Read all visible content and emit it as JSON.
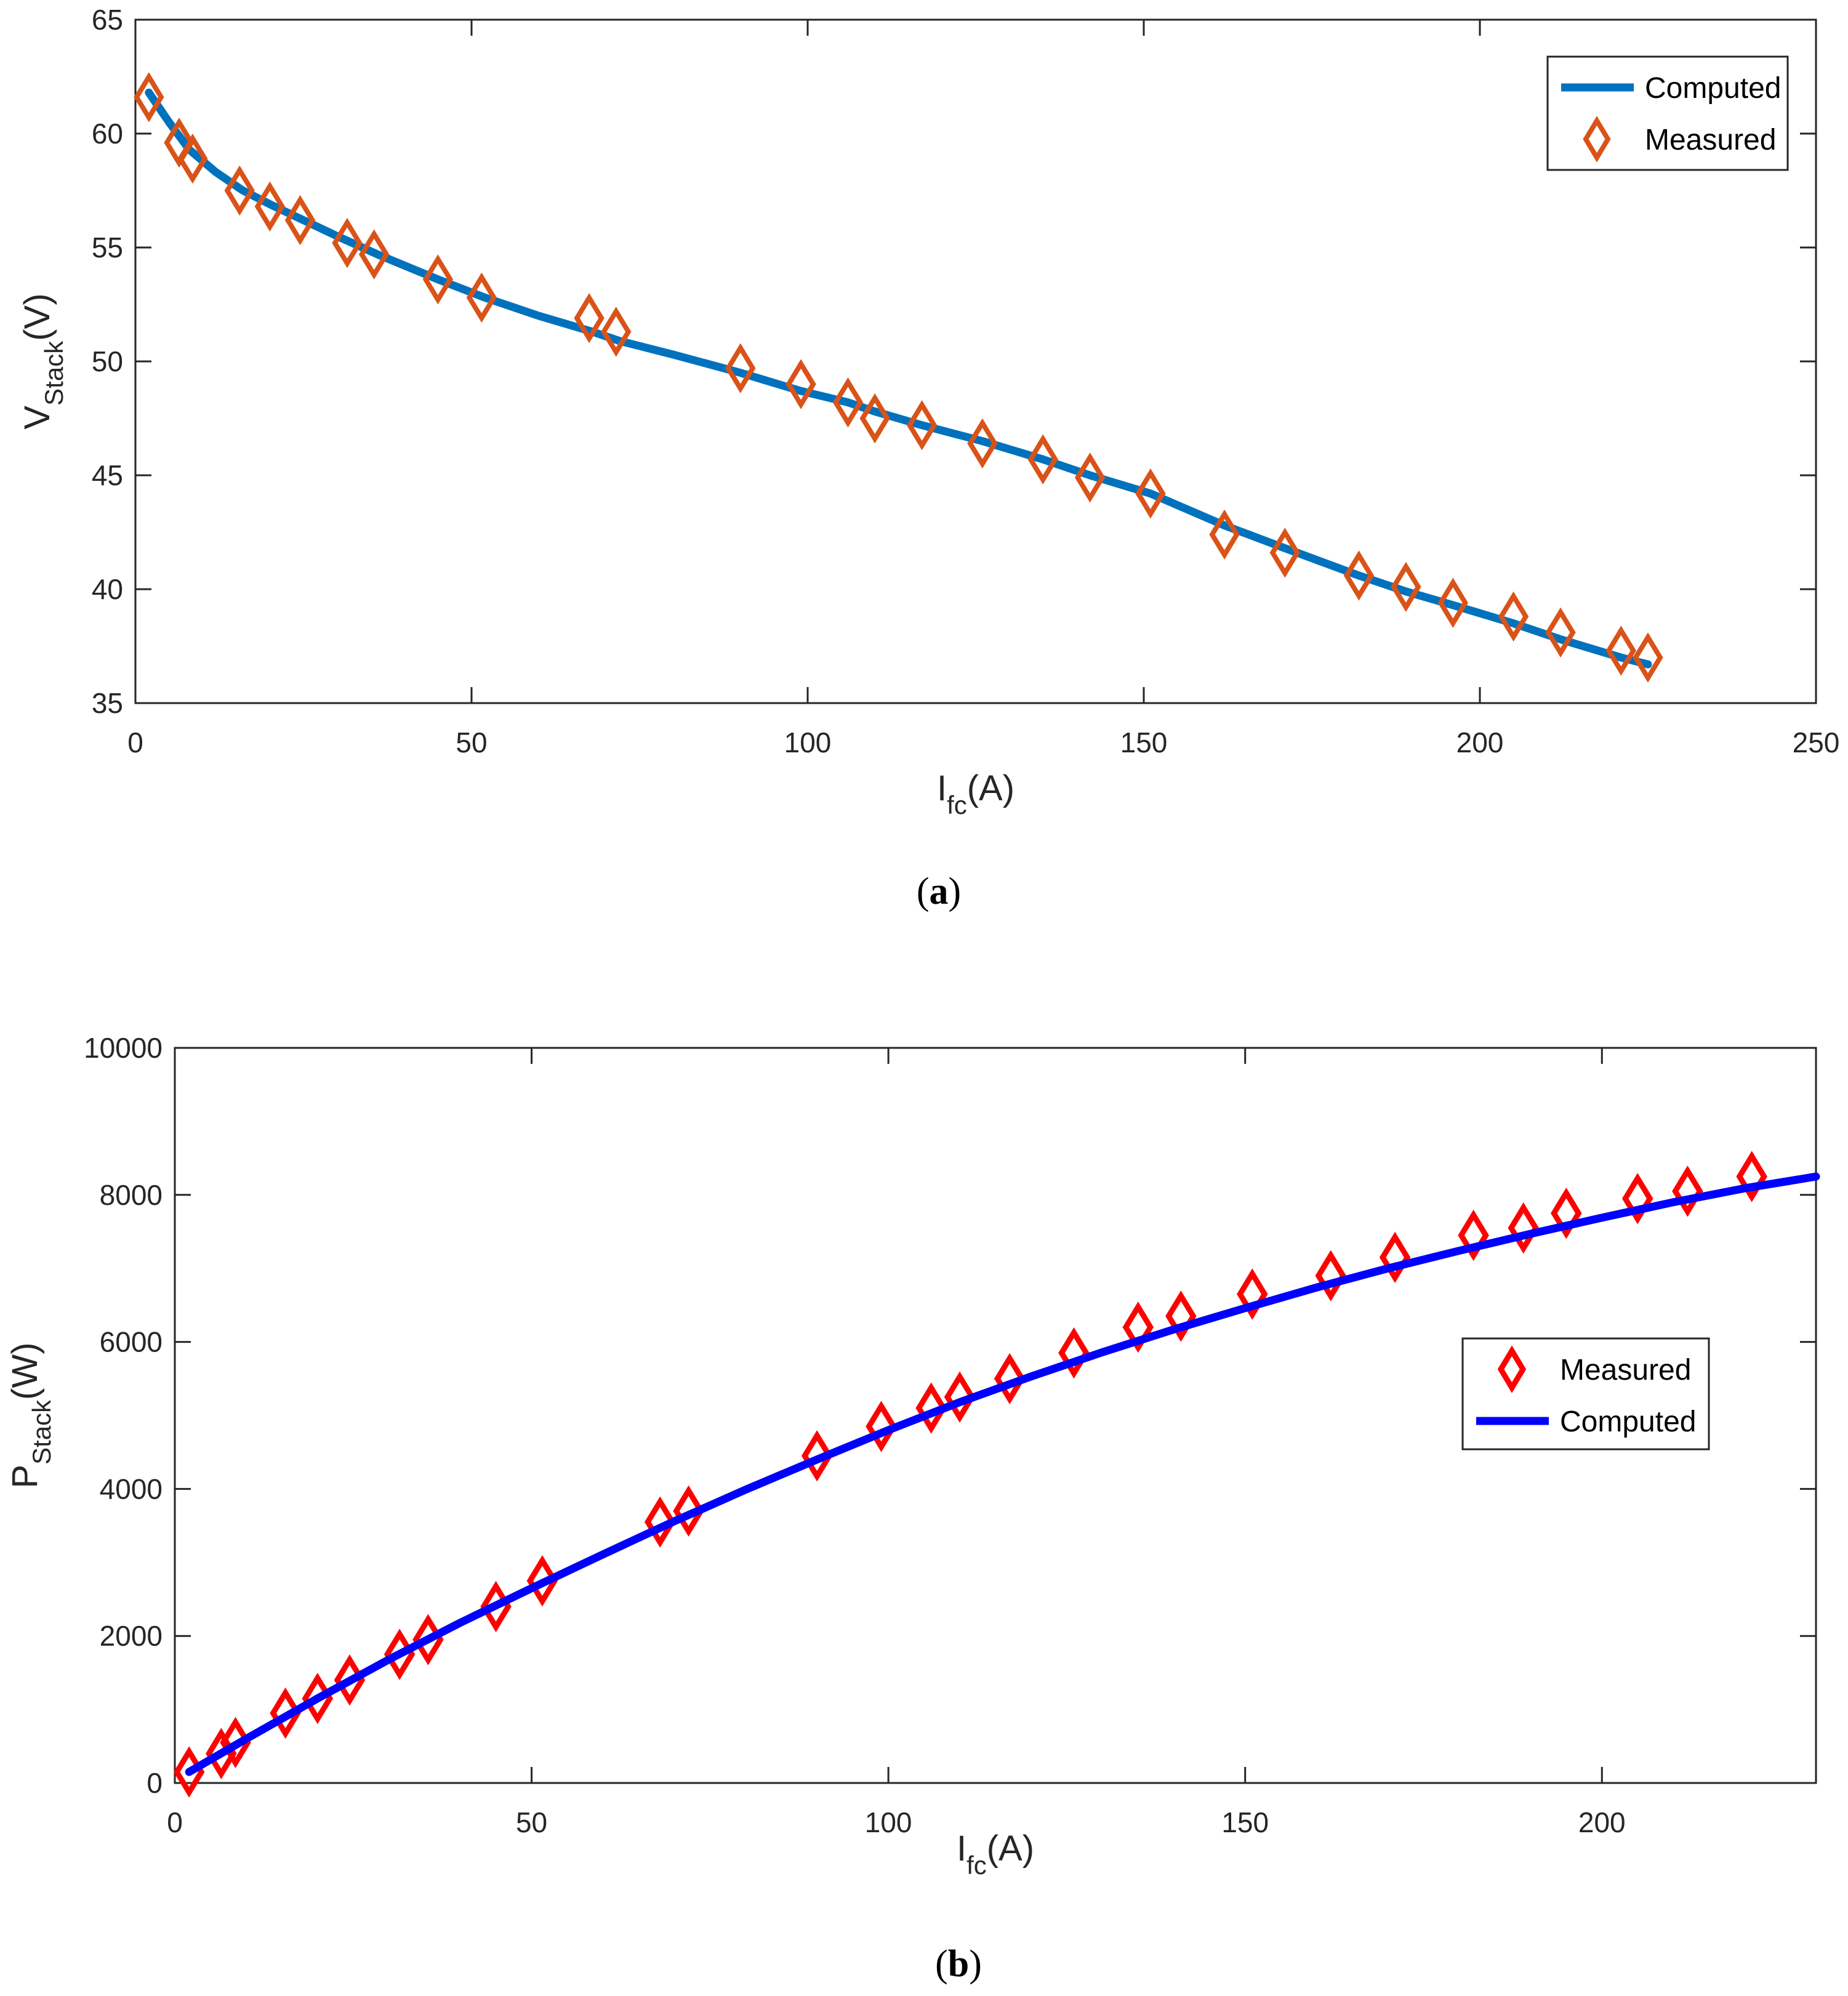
{
  "chart_data": [
    {
      "type": "line",
      "panel_caption": {
        "open": "(",
        "letter": "a",
        "close": ")"
      },
      "xlabel": {
        "main": "I",
        "sub": "fc",
        "unit": "(A)"
      },
      "ylabel": {
        "main": "V",
        "sub": "Stack",
        "unit": "(V)"
      },
      "xlim": [
        0,
        250
      ],
      "ylim": [
        35,
        65
      ],
      "xticks": [
        0,
        50,
        100,
        150,
        200,
        250
      ],
      "yticks": [
        35,
        40,
        45,
        50,
        55,
        60,
        65
      ],
      "legend_position": "top-right",
      "colors": {
        "computed": "#0072BD",
        "measured": "#D95319"
      },
      "series": [
        {
          "name": "Computed",
          "style": "line",
          "x": [
            2,
            5,
            8,
            12,
            16,
            20,
            25,
            30,
            36,
            45,
            52,
            60,
            68,
            72,
            80,
            90,
            99,
            106,
            110,
            117,
            126,
            135,
            142,
            151,
            162,
            171,
            182,
            189,
            196,
            205,
            212,
            221,
            225
          ],
          "y": [
            61.8,
            60.5,
            59.3,
            58.3,
            57.5,
            56.9,
            56.2,
            55.5,
            54.7,
            53.6,
            52.8,
            52.0,
            51.3,
            50.9,
            50.3,
            49.5,
            48.7,
            48.2,
            47.8,
            47.2,
            46.5,
            45.7,
            45.0,
            44.2,
            42.8,
            41.8,
            40.6,
            39.9,
            39.3,
            38.5,
            37.8,
            37.0,
            36.7
          ]
        },
        {
          "name": "Measured",
          "style": "diamond",
          "x": [
            2,
            6.5,
            8.5,
            15.5,
            20,
            24.5,
            31.5,
            35.5,
            45,
            51.5,
            67.5,
            71.5,
            90,
            99,
            106,
            110,
            117,
            126,
            135,
            142,
            151,
            162,
            171,
            182,
            189,
            196,
            205,
            212,
            221,
            225
          ],
          "y": [
            61.6,
            59.6,
            58.9,
            57.5,
            56.8,
            56.2,
            55.2,
            54.7,
            53.6,
            52.8,
            51.9,
            51.3,
            49.7,
            49.0,
            48.2,
            47.5,
            47.2,
            46.4,
            45.7,
            44.9,
            44.2,
            42.4,
            41.6,
            40.6,
            40.1,
            39.4,
            38.8,
            38.1,
            37.3,
            37.0
          ]
        }
      ]
    },
    {
      "type": "line",
      "panel_caption": {
        "open": "(",
        "letter": "b",
        "close": ")"
      },
      "xlabel": {
        "main": "I",
        "sub": "fc",
        "unit": "(A)"
      },
      "ylabel": {
        "main": "P",
        "sub": "Stack",
        "unit": "(W)"
      },
      "xlim": [
        0,
        230
      ],
      "ylim": [
        0,
        10000
      ],
      "xticks": [
        0,
        50,
        100,
        150,
        200
      ],
      "yticks": [
        0,
        2000,
        4000,
        6000,
        8000,
        10000
      ],
      "legend_position": "right",
      "colors": {
        "computed": "#0000FF",
        "measured": "#FF0000"
      },
      "series": [
        {
          "name": "Measured",
          "style": "diamond",
          "x": [
            2,
            6.5,
            8.5,
            15.5,
            20,
            24.5,
            31.5,
            35.5,
            45,
            51.5,
            68,
            72,
            90,
            99,
            106,
            110,
            117,
            126,
            135,
            141,
            151,
            162,
            171,
            182,
            189,
            195,
            205,
            212,
            221
          ],
          "y": [
            150,
            400,
            550,
            950,
            1150,
            1400,
            1750,
            1950,
            2400,
            2750,
            3550,
            3700,
            4450,
            4850,
            5100,
            5250,
            5500,
            5850,
            6200,
            6350,
            6650,
            6900,
            7150,
            7450,
            7550,
            7750,
            7950,
            8050,
            8250
          ]
        },
        {
          "name": "Computed",
          "style": "line",
          "x": [
            2,
            10,
            20,
            30,
            40,
            50,
            60,
            70,
            80,
            90,
            100,
            110,
            120,
            130,
            140,
            150,
            160,
            170,
            180,
            190,
            200,
            210,
            220,
            230
          ],
          "y": [
            150,
            600,
            1150,
            1680,
            2180,
            2650,
            3110,
            3560,
            3990,
            4400,
            4800,
            5180,
            5530,
            5860,
            6170,
            6460,
            6740,
            7000,
            7240,
            7470,
            7690,
            7900,
            8090,
            8250
          ]
        }
      ]
    }
  ]
}
